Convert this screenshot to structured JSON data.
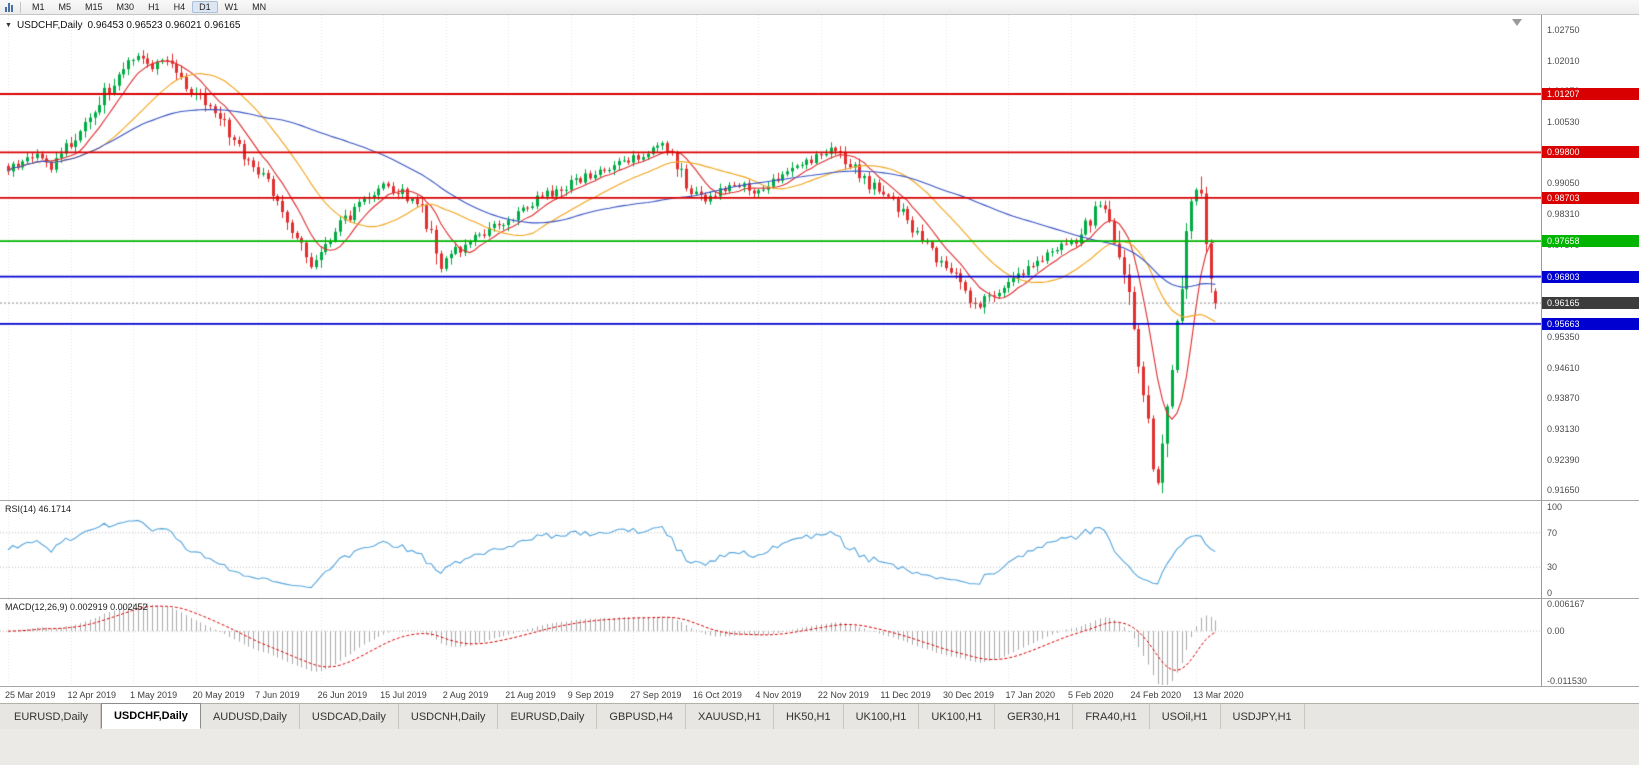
{
  "toolbar": {
    "timeframes": [
      "M1",
      "M5",
      "M15",
      "M30",
      "H1",
      "H4",
      "D1",
      "W1",
      "MN"
    ],
    "active_timeframe": "D1"
  },
  "icons": {
    "collapse_arrow": "▼"
  },
  "chart": {
    "symbol_period": "USDCHF,Daily",
    "ohlc": "0.96453 0.96523 0.96021 0.96165",
    "open": "0.96453",
    "high": "0.96523",
    "low": "0.96021",
    "close": "0.96165"
  },
  "price_axis": {
    "ticks": [
      "1.02750",
      "1.02010",
      "1.01270",
      "1.00530",
      "0.99790",
      "0.99050",
      "0.98310",
      "0.97570",
      "0.96830",
      "0.96090",
      "0.95350",
      "0.94610",
      "0.93870",
      "0.93130",
      "0.92390",
      "0.91650"
    ]
  },
  "levels": [
    {
      "label": "1.01207",
      "value": 1.01207,
      "color": "#d80000",
      "kind": "resistance"
    },
    {
      "label": "0.99800",
      "value": 0.998,
      "color": "#d80000",
      "kind": "resistance"
    },
    {
      "label": "0.98703",
      "value": 0.98703,
      "color": "#d80000",
      "kind": "resistance"
    },
    {
      "label": "0.97658",
      "value": 0.97658,
      "color": "#00b400",
      "kind": "pivot"
    },
    {
      "label": "0.96803",
      "value": 0.96803,
      "color": "#0000d0",
      "kind": "support"
    },
    {
      "label": "0.95663",
      "value": 0.95663,
      "color": "#0000d0",
      "kind": "support"
    }
  ],
  "current_price": {
    "label": "0.96165",
    "value": 0.96165,
    "badge_color": "#3c3c3c"
  },
  "rsi_panel": {
    "name": "RSI(14)",
    "value": "46.1714",
    "ticks": [
      "100",
      "70",
      "30",
      "0"
    ],
    "levels": [
      70,
      30
    ],
    "line_color": "#58a6dd"
  },
  "macd_panel": {
    "name": "MACD(12,26,9)",
    "values": "0.002919 0.002452",
    "ticks": [
      "0.006167",
      "0.00",
      "-0.011530"
    ],
    "range": [
      -0.01153,
      0.006167
    ],
    "histogram_color": "#ababab",
    "signal_color": "#d80000"
  },
  "date_axis": [
    "25 Mar 2019",
    "12 Apr 2019",
    "1 May 2019",
    "20 May 2019",
    "7 Jun 2019",
    "26 Jun 2019",
    "15 Jul 2019",
    "2 Aug 2019",
    "21 Aug 2019",
    "9 Sep 2019",
    "27 Sep 2019",
    "16 Oct 2019",
    "4 Nov 2019",
    "22 Nov 2019",
    "11 Dec 2019",
    "30 Dec 2019",
    "17 Jan 2020",
    "5 Feb 2020",
    "24 Feb 2020",
    "13 Mar 2020"
  ],
  "tabs": [
    {
      "label": "EURUSD,Daily",
      "active": false
    },
    {
      "label": "USDCHF,Daily",
      "active": true
    },
    {
      "label": "AUDUSD,Daily",
      "active": false
    },
    {
      "label": "USDCAD,Daily",
      "active": false
    },
    {
      "label": "USDCNH,Daily",
      "active": false
    },
    {
      "label": "EURUSD,Daily",
      "active": false
    },
    {
      "label": "GBPUSD,H4",
      "active": false
    },
    {
      "label": "XAUUSD,H1",
      "active": false
    },
    {
      "label": "HK50,H1",
      "active": false
    },
    {
      "label": "UK100,H1",
      "active": false
    },
    {
      "label": "UK100,H1",
      "active": false
    },
    {
      "label": "GER30,H1",
      "active": false
    },
    {
      "label": "FRA40,H1",
      "active": false
    },
    {
      "label": "USOil,H1",
      "active": false
    },
    {
      "label": "USDJPY,H1",
      "active": false
    }
  ],
  "chart_data": {
    "type": "candlestick",
    "symbol": "USDCHF",
    "period": "Daily",
    "candle_count": 252,
    "ylim": [
      0.9165,
      1.0275
    ],
    "x_labels_every_candles": 13,
    "up_color": "#00ad45",
    "down_color": "#e03030",
    "price_anchors": [
      [
        0,
        0.9935
      ],
      [
        3,
        0.9955
      ],
      [
        6,
        0.997
      ],
      [
        9,
        0.9945
      ],
      [
        12,
        0.999
      ],
      [
        15,
        1.0025
      ],
      [
        18,
        1.0075
      ],
      [
        21,
        1.014
      ],
      [
        24,
        1.019
      ],
      [
        27,
        1.0215
      ],
      [
        30,
        1.0185
      ],
      [
        33,
        1.0205
      ],
      [
        36,
        1.016
      ],
      [
        40,
        1.0105
      ],
      [
        44,
        1.006
      ],
      [
        48,
        0.9985
      ],
      [
        52,
        0.993
      ],
      [
        56,
        0.987
      ],
      [
        60,
        0.977
      ],
      [
        63,
        0.971
      ],
      [
        66,
        0.976
      ],
      [
        70,
        0.9815
      ],
      [
        74,
        0.987
      ],
      [
        78,
        0.99
      ],
      [
        82,
        0.9885
      ],
      [
        86,
        0.984
      ],
      [
        88,
        0.978
      ],
      [
        90,
        0.971
      ],
      [
        93,
        0.974
      ],
      [
        96,
        0.9765
      ],
      [
        100,
        0.979
      ],
      [
        104,
        0.982
      ],
      [
        108,
        0.985
      ],
      [
        112,
        0.988
      ],
      [
        116,
        0.99
      ],
      [
        120,
        0.992
      ],
      [
        124,
        0.994
      ],
      [
        128,
        0.9955
      ],
      [
        132,
        0.997
      ],
      [
        136,
        0.9995
      ],
      [
        139,
        0.995
      ],
      [
        142,
        0.989
      ],
      [
        145,
        0.9865
      ],
      [
        148,
        0.9885
      ],
      [
        152,
        0.9905
      ],
      [
        156,
        0.9885
      ],
      [
        160,
        0.992
      ],
      [
        164,
        0.995
      ],
      [
        168,
        0.997
      ],
      [
        172,
        0.999
      ],
      [
        175,
        0.995
      ],
      [
        178,
        0.991
      ],
      [
        182,
        0.988
      ],
      [
        186,
        0.983
      ],
      [
        190,
        0.977
      ],
      [
        193,
        0.972
      ],
      [
        196,
        0.969
      ],
      [
        199,
        0.964
      ],
      [
        202,
        0.961
      ],
      [
        205,
        0.964
      ],
      [
        208,
        0.966
      ],
      [
        211,
        0.969
      ],
      [
        214,
        0.972
      ],
      [
        218,
        0.9745
      ],
      [
        221,
        0.976
      ],
      [
        224,
        0.98
      ],
      [
        227,
        0.985
      ],
      [
        229,
        0.98
      ],
      [
        231,
        0.972
      ],
      [
        233,
        0.962
      ],
      [
        235,
        0.948
      ],
      [
        237,
        0.932
      ],
      [
        238,
        0.923
      ],
      [
        239,
        0.917
      ],
      [
        240,
        0.926
      ],
      [
        241,
        0.937
      ],
      [
        242,
        0.948
      ],
      [
        243,
        0.958
      ],
      [
        244,
        0.968
      ],
      [
        245,
        0.978
      ],
      [
        246,
        0.985
      ],
      [
        247,
        0.988
      ],
      [
        248,
        0.986
      ],
      [
        249,
        0.978
      ],
      [
        250,
        0.968
      ],
      [
        251,
        0.96165
      ]
    ],
    "last_candle": {
      "open": 0.96453,
      "high": 0.96523,
      "low": 0.96021,
      "close": 0.96165
    },
    "moving_averages": [
      {
        "period": 8,
        "color": "#dd2f2f",
        "type": "sma"
      },
      {
        "period": 21,
        "color": "#f2a51f",
        "type": "sma"
      },
      {
        "period": 55,
        "color": "#3a55c4",
        "type": "sma"
      }
    ],
    "horizontal_lines": [
      1.01207,
      0.998,
      0.98703,
      0.97658,
      0.96803,
      0.95663
    ],
    "indicators": [
      {
        "name": "RSI",
        "period": 14,
        "last_value": 46.1714
      },
      {
        "name": "MACD",
        "fast": 12,
        "slow": 26,
        "signal": 9,
        "last_macd": 0.002919,
        "last_signal": 0.002452
      }
    ]
  }
}
